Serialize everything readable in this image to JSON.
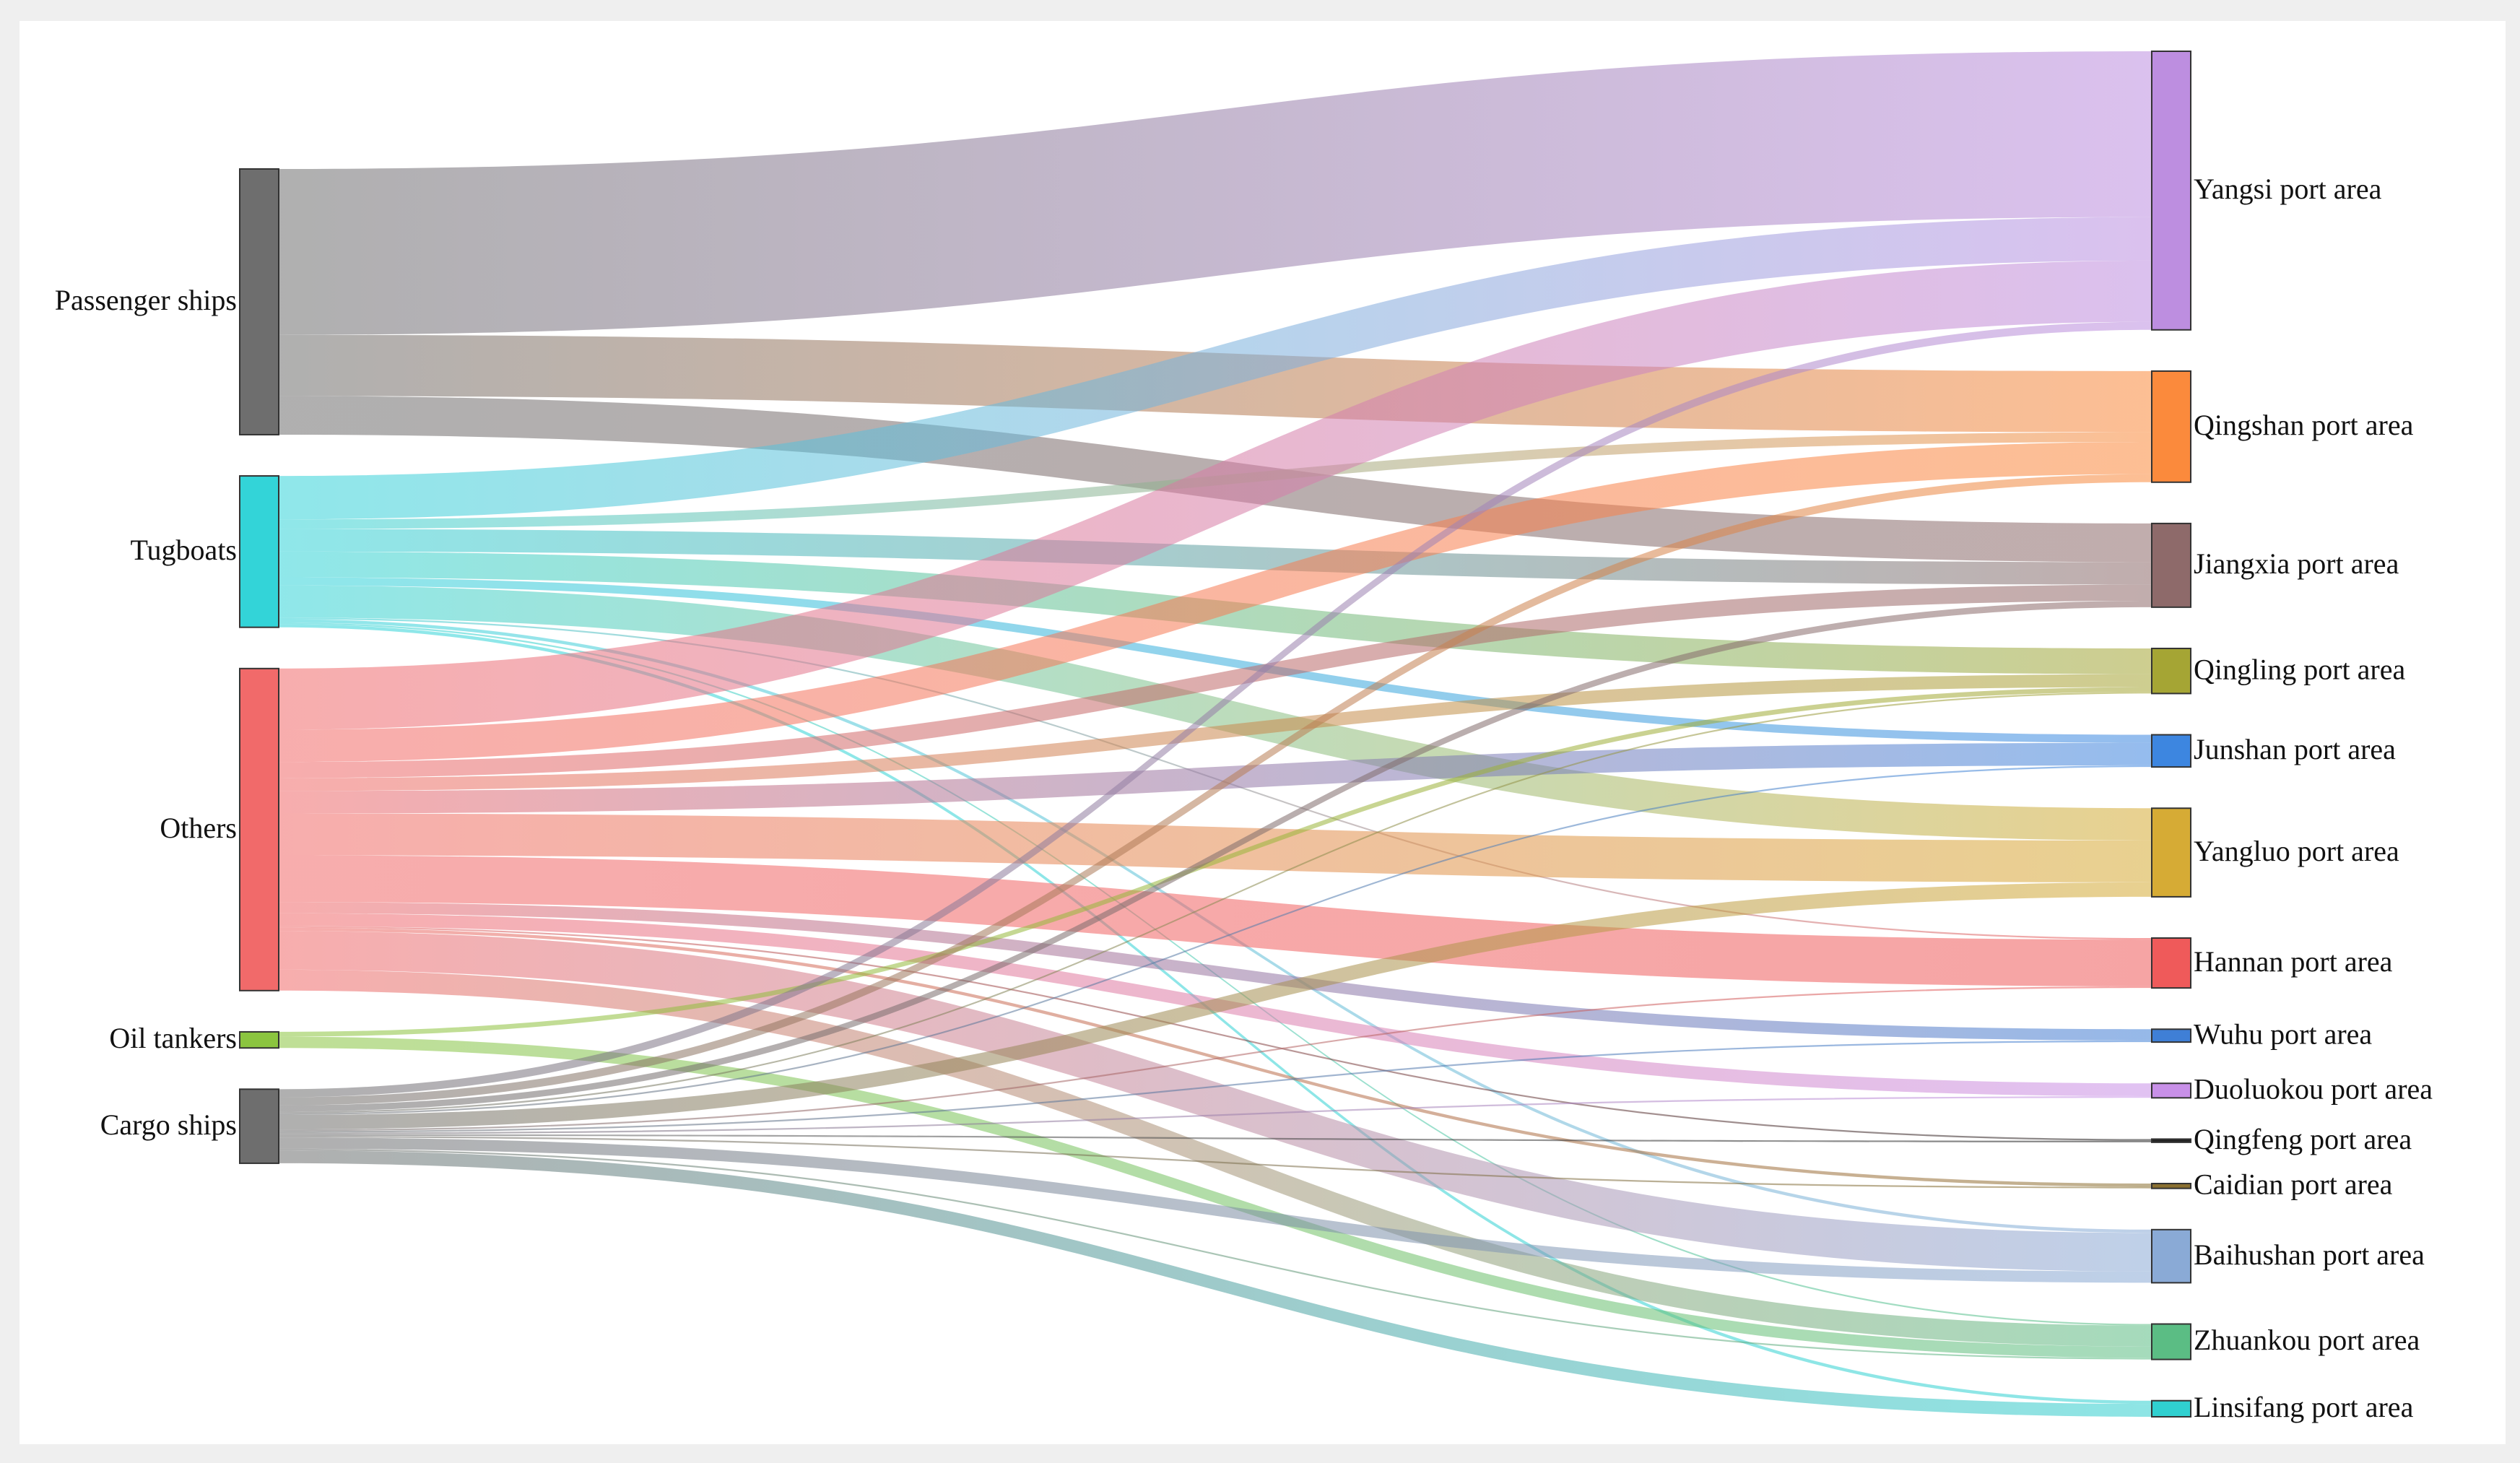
{
  "chart_data": {
    "type": "sankey",
    "nodes": [
      {
        "name": "Passenger ships",
        "color": "#6e6e6e"
      },
      {
        "name": "Tugboats",
        "color": "#33d4d8"
      },
      {
        "name": "Others",
        "color": "#f16a6a"
      },
      {
        "name": "Oil tankers",
        "color": "#8bc53f"
      },
      {
        "name": "Cargo ships",
        "color": "#6e6e6e"
      },
      {
        "name": "Yangsi port area",
        "color": "#bd8ee0"
      },
      {
        "name": "Qingshan port area",
        "color": "#fb8a3c"
      },
      {
        "name": "Jiangxia port area",
        "color": "#8e6a6a"
      },
      {
        "name": "Qingling port area",
        "color": "#a5a534"
      },
      {
        "name": "Junshan port area",
        "color": "#3d86e0"
      },
      {
        "name": "Yangluo port area",
        "color": "#d6ab35"
      },
      {
        "name": "Hannan port area",
        "color": "#ef5a5a"
      },
      {
        "name": "Wuhu port area",
        "color": "#3f7fd6"
      },
      {
        "name": "Duoluokou port area",
        "color": "#c890e8"
      },
      {
        "name": "Qingfeng port area",
        "color": "#222222"
      },
      {
        "name": "Caidian port area",
        "color": "#8a7030"
      },
      {
        "name": "Baihushan port area",
        "color": "#8aaad6"
      },
      {
        "name": "Zhuankou port area",
        "color": "#5bbd84"
      },
      {
        "name": "Linsifang port area",
        "color": "#30d0d0"
      }
    ],
    "links": [
      {
        "source": 0,
        "target": 5,
        "value": 103
      },
      {
        "source": 0,
        "target": 6,
        "value": 38
      },
      {
        "source": 0,
        "target": 7,
        "value": 24
      },
      {
        "source": 1,
        "target": 5,
        "value": 27
      },
      {
        "source": 1,
        "target": 6,
        "value": 6
      },
      {
        "source": 1,
        "target": 7,
        "value": 14
      },
      {
        "source": 1,
        "target": 8,
        "value": 16
      },
      {
        "source": 1,
        "target": 9,
        "value": 5
      },
      {
        "source": 1,
        "target": 10,
        "value": 20
      },
      {
        "source": 1,
        "target": 11,
        "value": 1
      },
      {
        "source": 1,
        "target": 16,
        "value": 2
      },
      {
        "source": 1,
        "target": 17,
        "value": 1
      },
      {
        "source": 1,
        "target": 18,
        "value": 2
      },
      {
        "source": 2,
        "target": 5,
        "value": 38
      },
      {
        "source": 2,
        "target": 6,
        "value": 20
      },
      {
        "source": 2,
        "target": 7,
        "value": 10
      },
      {
        "source": 2,
        "target": 8,
        "value": 8
      },
      {
        "source": 2,
        "target": 9,
        "value": 14
      },
      {
        "source": 2,
        "target": 10,
        "value": 26
      },
      {
        "source": 2,
        "target": 11,
        "value": 29
      },
      {
        "source": 2,
        "target": 12,
        "value": 7
      },
      {
        "source": 2,
        "target": 13,
        "value": 8
      },
      {
        "source": 2,
        "target": 14,
        "value": 1
      },
      {
        "source": 2,
        "target": 15,
        "value": 2
      },
      {
        "source": 2,
        "target": 16,
        "value": 24
      },
      {
        "source": 2,
        "target": 17,
        "value": 13
      },
      {
        "source": 3,
        "target": 8,
        "value": 3
      },
      {
        "source": 3,
        "target": 17,
        "value": 7
      },
      {
        "source": 4,
        "target": 5,
        "value": 5
      },
      {
        "source": 4,
        "target": 6,
        "value": 5
      },
      {
        "source": 4,
        "target": 7,
        "value": 4
      },
      {
        "source": 4,
        "target": 8,
        "value": 1
      },
      {
        "source": 4,
        "target": 9,
        "value": 1
      },
      {
        "source": 4,
        "target": 10,
        "value": 9
      },
      {
        "source": 4,
        "target": 11,
        "value": 1
      },
      {
        "source": 4,
        "target": 12,
        "value": 1
      },
      {
        "source": 4,
        "target": 13,
        "value": 1
      },
      {
        "source": 4,
        "target": 14,
        "value": 1
      },
      {
        "source": 4,
        "target": 15,
        "value": 1
      },
      {
        "source": 4,
        "target": 16,
        "value": 7
      },
      {
        "source": 4,
        "target": 17,
        "value": 1
      },
      {
        "source": 4,
        "target": 18,
        "value": 8
      }
    ]
  }
}
